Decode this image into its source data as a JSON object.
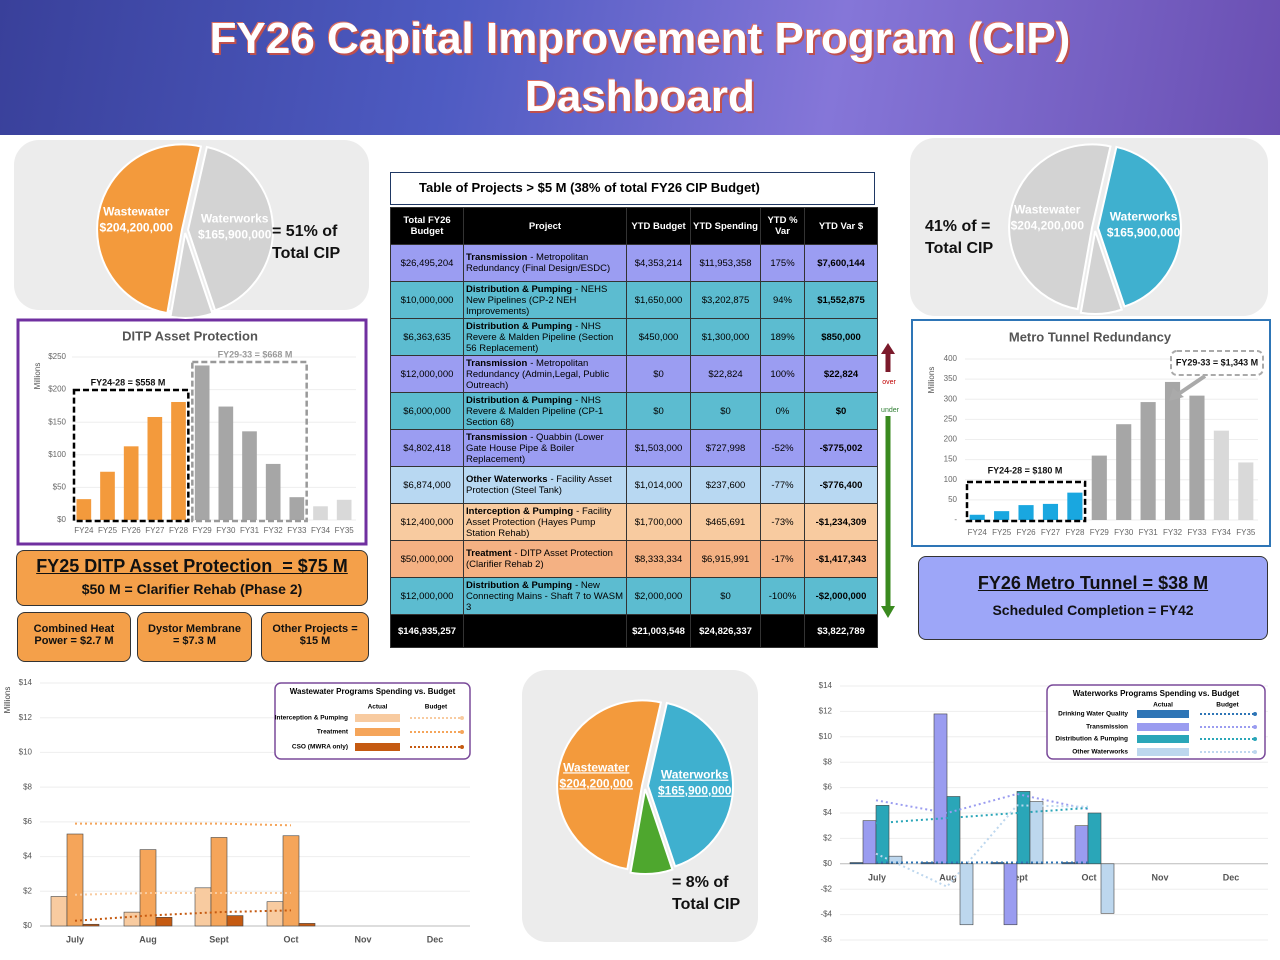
{
  "title": "FY26 Capital Improvement Program (CIP) Dashboard",
  "chart_data": [
    {
      "type": "pie",
      "categories": [
        "Wastewater",
        "Waterworks",
        null
      ],
      "values": [
        204200000,
        165900000,
        32000000
      ],
      "value_labels": [
        "$204,200,000",
        "$165,900,000",
        null
      ],
      "colors": [
        "#f39a3c",
        "#d3d3d3",
        "#d3d3d3"
      ],
      "annotation": "= 51% of Total CIP"
    },
    {
      "type": "pie",
      "categories": [
        "Wastewater",
        "Waterworks",
        null
      ],
      "values": [
        204200000,
        165900000,
        32000000
      ],
      "value_labels": [
        "$204,200,000",
        "$165,900,000",
        null
      ],
      "colors": [
        "#d3d3d3",
        "#3fb0cf",
        "#d3d3d3"
      ],
      "annotation": "41% of = Total CIP"
    },
    {
      "type": "bar",
      "title": "DITP Asset Protection",
      "ylabel": "Millions",
      "categories": [
        "FY24",
        "FY25",
        "FY26",
        "FY27",
        "FY28",
        "FY29",
        "FY30",
        "FY31",
        "FY32",
        "FY33",
        "FY34",
        "FY35"
      ],
      "values": [
        32,
        74,
        113,
        158,
        181,
        237,
        174,
        136,
        86,
        35,
        21,
        31
      ],
      "colors": [
        "#f39a3c",
        "#f39a3c",
        "#f39a3c",
        "#f39a3c",
        "#f39a3c",
        "#a6a6a6",
        "#a6a6a6",
        "#a6a6a6",
        "#a6a6a6",
        "#a6a6a6",
        "#d9d9d9",
        "#d9d9d9"
      ],
      "ylim": [
        0,
        250
      ],
      "yticks": [
        {
          "value": 0,
          "label": "$0"
        },
        {
          "value": 50,
          "label": "$50"
        },
        {
          "value": 100,
          "label": "$100"
        },
        {
          "value": 150,
          "label": "$150"
        },
        {
          "value": 200,
          "label": "$200"
        },
        {
          "value": 250,
          "label": "$250"
        }
      ],
      "grid": true,
      "annotations": [
        "FY24-28 = $558 M",
        "FY29-33 = $668 M"
      ]
    },
    {
      "type": "bar",
      "title": "Metro Tunnel Redundancy",
      "ylabel": "Millions",
      "categories": [
        "FY24",
        "FY25",
        "FY26",
        "FY27",
        "FY28",
        "FY29",
        "FY30",
        "FY31",
        "FY32",
        "FY33",
        "FY34",
        "FY35"
      ],
      "values": [
        13,
        22,
        37,
        40,
        68,
        160,
        238,
        293,
        343,
        309,
        222,
        143
      ],
      "colors": [
        "#19a7e0",
        "#19a7e0",
        "#19a7e0",
        "#19a7e0",
        "#19a7e0",
        "#a6a6a6",
        "#a6a6a6",
        "#a6a6a6",
        "#a6a6a6",
        "#a6a6a6",
        "#d9d9d9",
        "#d9d9d9"
      ],
      "ylim": [
        0,
        400
      ],
      "yticks": [
        {
          "value": 0,
          "label": "-"
        },
        50,
        100,
        150,
        200,
        250,
        300,
        350,
        400
      ],
      "grid": true,
      "annotations": [
        "FY24-28 = $180 M",
        "FY29-33 = $1,343 M"
      ]
    },
    {
      "type": "combo",
      "title": "Wastewater Programs Spending vs. Budget",
      "ylabel": "Millions",
      "legend_columns": [
        "Actual",
        "Budget"
      ],
      "categories": [
        "July",
        "Aug",
        "Sept",
        "Oct",
        "Nov",
        "Dec"
      ],
      "ylim": [
        0,
        14
      ],
      "yticks": [
        {
          "value": 0,
          "label": "$0"
        },
        {
          "value": 2,
          "label": "$2"
        },
        {
          "value": 4,
          "label": "$4"
        },
        {
          "value": 6,
          "label": "$6"
        },
        {
          "value": 8,
          "label": "$8"
        },
        {
          "value": 10,
          "label": "$10"
        },
        {
          "value": 12,
          "label": "$12"
        },
        {
          "value": 14,
          "label": "$14"
        }
      ],
      "grid": true,
      "series": [
        {
          "name": "Interception & Pumping",
          "color": "#f8cba0",
          "values": [
            1.7,
            0.8,
            2.2,
            1.4,
            null,
            null
          ],
          "budget_values": [
            1.8,
            1.9,
            1.9,
            1.9,
            null,
            null
          ]
        },
        {
          "name": "Treatment",
          "color": "#f5a55a",
          "values": [
            5.3,
            4.4,
            5.1,
            5.2,
            null,
            null
          ],
          "budget_values": [
            5.9,
            5.9,
            5.9,
            5.8,
            null,
            null
          ]
        },
        {
          "name": "CSO (MWRA only)",
          "color": "#c55a11",
          "values": [
            0.1,
            0.5,
            0.6,
            0.15,
            null,
            null
          ],
          "budget_values": [
            0.3,
            0.6,
            0.8,
            0.9,
            null,
            null
          ]
        }
      ]
    },
    {
      "type": "combo",
      "title": "Waterworks Programs Spending vs. Budget",
      "legend_columns": [
        "Actual",
        "Budget"
      ],
      "categories": [
        "July",
        "Aug",
        "Sept",
        "Oct",
        "Nov",
        "Dec"
      ],
      "ylim": [
        -6,
        14
      ],
      "yticks": [
        {
          "value": -6,
          "label": "-$6"
        },
        {
          "value": -4,
          "label": "-$4"
        },
        {
          "value": -2,
          "label": "-$2"
        },
        {
          "value": 0,
          "label": "$0"
        },
        {
          "value": 2,
          "label": "$2"
        },
        {
          "value": 4,
          "label": "$4"
        },
        {
          "value": 6,
          "label": "$6"
        },
        {
          "value": 8,
          "label": "$8"
        },
        {
          "value": 10,
          "label": "$10"
        },
        {
          "value": 12,
          "label": "$12"
        },
        {
          "value": 14,
          "label": "$14"
        }
      ],
      "grid": true,
      "series": [
        {
          "name": "Drinking Water Quality",
          "color": "#2e75b6",
          "values": [
            0.1,
            0.1,
            0.1,
            0.1,
            null,
            null
          ],
          "budget_values": [
            0.1,
            0.1,
            0.1,
            0.1,
            null,
            null
          ]
        },
        {
          "name": "Transmission",
          "color": "#9a9cf0",
          "values": [
            3.4,
            11.8,
            -4.8,
            3.0,
            null,
            null
          ],
          "budget_values": [
            5.0,
            4.0,
            5.5,
            4.3,
            null,
            null
          ]
        },
        {
          "name": "Distribution & Pumping",
          "color": "#2aa6b8",
          "values": [
            4.6,
            5.3,
            5.7,
            4.0,
            null,
            null
          ],
          "budget_values": [
            3.2,
            3.6,
            4.0,
            4.4,
            null,
            null
          ]
        },
        {
          "name": "Other Waterworks",
          "color": "#bdd7ee",
          "values": [
            0.6,
            -4.8,
            4.9,
            -3.9,
            null,
            null
          ],
          "budget_values": [
            0.8,
            -1.8,
            4.6,
            4.5,
            null,
            null
          ]
        }
      ]
    },
    {
      "type": "pie",
      "categories": [
        "Wastewater",
        "Waterworks",
        null
      ],
      "values": [
        204200000,
        165900000,
        32000000
      ],
      "value_labels": [
        "$204,200,000",
        "$165,900,000",
        null
      ],
      "colors": [
        "#f39a3c",
        "#3fb0cf",
        "#4ea72e"
      ],
      "annotation": "= 8% of Total CIP"
    }
  ],
  "table": {
    "title": "Table of  Projects > $5 M  (38% of total FY26 CIP Budget)",
    "columns": [
      "Total FY26 Budget",
      "Project",
      "YTD Budget",
      "YTD Spending",
      "YTD % Var",
      "YTD Var $"
    ],
    "rows": [
      {
        "total": "$26,495,204",
        "program": "Transmission",
        "detail": "- Metropolitan Redundancy (Final Design/ESDC)",
        "ytd_budget": "$4,353,214",
        "ytd_spending": "$11,953,358",
        "pct_var": "175%",
        "var": "$7,600,144",
        "color": "#9b9df2"
      },
      {
        "total": "$10,000,000",
        "program": "Distribution & Pumping",
        "detail": "- NEHS New Pipelines (CP-2 NEH Improvements)",
        "ytd_budget": "$1,650,000",
        "ytd_spending": "$3,202,875",
        "pct_var": "94%",
        "var": "$1,552,875",
        "color": "#5cbcd0"
      },
      {
        "total": "$6,363,635",
        "program": "Distribution & Pumping",
        "detail": "- NHS Revere & Malden Pipeline (Section 56 Replacement)",
        "ytd_budget": "$450,000",
        "ytd_spending": "$1,300,000",
        "pct_var": "189%",
        "var": "$850,000",
        "color": "#5cbcd0"
      },
      {
        "total": "$12,000,000",
        "program": "Transmission",
        "detail": "- Metropolitan Redundancy (Admin,Legal, Public Outreach)",
        "ytd_budget": "$0",
        "ytd_spending": "$22,824",
        "pct_var": "100%",
        "var": "$22,824",
        "color": "#9b9df2"
      },
      {
        "total": "$6,000,000",
        "program": "Distribution & Pumping",
        "detail": "- NHS Revere & Malden Pipeline (CP-1 Section 68)",
        "ytd_budget": "$0",
        "ytd_spending": "$0",
        "pct_var": "0%",
        "var": "$0",
        "color": "#5cbcd0"
      },
      {
        "total": "$4,802,418",
        "program": "Transmission",
        "detail": "- Quabbin (Lower Gate House Pipe & Boiler Replacement)",
        "ytd_budget": "$1,503,000",
        "ytd_spending": "$727,998",
        "pct_var": "-52%",
        "var": "-$775,002",
        "color": "#9b9df2"
      },
      {
        "total": "$6,874,000",
        "program": "Other Waterworks",
        "detail": "- Facility Asset Protection (Steel Tank)",
        "ytd_budget": "$1,014,000",
        "ytd_spending": "$237,600",
        "pct_var": "-77%",
        "var": "-$776,400",
        "color": "#b8d8f2"
      },
      {
        "total": "$12,400,000",
        "program": "Interception & Pumping",
        "detail": "- Facility Asset Protection (Hayes Pump Station Rehab)",
        "ytd_budget": "$1,700,000",
        "ytd_spending": "$465,691",
        "pct_var": "-73%",
        "var": "-$1,234,309",
        "color": "#f8cba0"
      },
      {
        "total": "$50,000,000",
        "program": "Treatment",
        "detail": "- DITP Asset Protection (Clarifier Rehab 2)",
        "ytd_budget": "$8,333,334",
        "ytd_spending": "$6,915,991",
        "pct_var": "-17%",
        "var": "-$1,417,343",
        "color": "#f4b183"
      },
      {
        "total": "$12,000,000",
        "program": "Distribution & Pumping",
        "detail": "- New Connecting Mains - Shaft 7 to WASM 3",
        "ytd_budget": "$2,000,000",
        "ytd_spending": "$0",
        "pct_var": "-100%",
        "var": "-$2,000,000",
        "color": "#5cbcd0"
      }
    ],
    "total_row": {
      "total": "$146,935,257",
      "ytd_budget": "$21,003,548",
      "ytd_spending": "$24,826,337",
      "var": "$3,822,789"
    }
  },
  "arrow_labels": [
    "over",
    "under"
  ],
  "ditp_box": {
    "title": "FY25 DITP Asset Protection  = $75 M",
    "subtitle": "$50 M = Clarifier Rehab (Phase 2)",
    "items": [
      "Combined Heat Power = $2.7 M",
      "Dystor Membrane = $7.3 M",
      "Other Projects = $15 M"
    ]
  },
  "tunnel_box": {
    "title": "FY26 Metro Tunnel = $38 M",
    "subtitle": "Scheduled Completion = FY42"
  }
}
